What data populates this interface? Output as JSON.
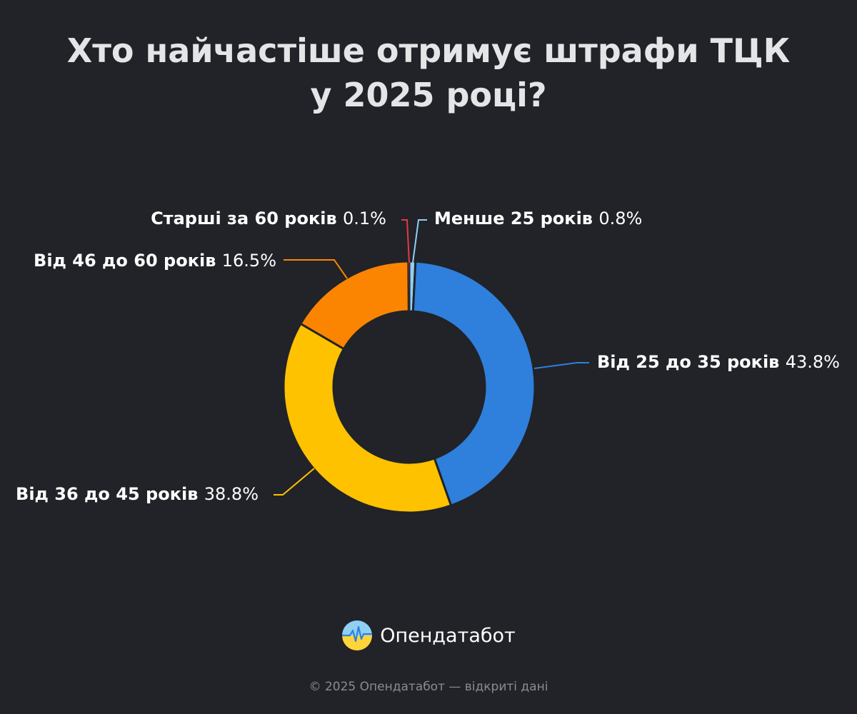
{
  "title": {
    "line1": "Хто найчастіше отримує штрафи ТЦК",
    "line2": "у 2025 році?"
  },
  "chart_data": {
    "type": "pie",
    "variant": "donut",
    "title": "Хто найчастіше отримує штрафи ТЦК у 2025 році?",
    "unit": "%",
    "slices": [
      {
        "label": "Менше 25 років",
        "value": 0.8,
        "display": "0.8%",
        "color": "#8fd0f5"
      },
      {
        "label": "Від 25 до 35 років",
        "value": 43.8,
        "display": "43.8%",
        "color": "#2e80dc"
      },
      {
        "label": "Від 36 до 45 років",
        "value": 38.8,
        "display": "38.8%",
        "color": "#ffc200"
      },
      {
        "label": "Від 46 до 60 років",
        "value": 16.5,
        "display": "16.5%",
        "color": "#fb8500"
      },
      {
        "label": "Старші за 60 років",
        "value": 0.1,
        "display": "0.1%",
        "color": "#e63946"
      }
    ],
    "legend": "none",
    "labels": "outside-with-leader-lines"
  },
  "brand": {
    "name": "Опендатабот",
    "logo_icon": "opendatabot-logo-icon",
    "logo_colors": [
      "#8fd0f5",
      "#ffd43b"
    ]
  },
  "footer": {
    "text": "© 2025 Опендатабот — відкриті дані"
  }
}
